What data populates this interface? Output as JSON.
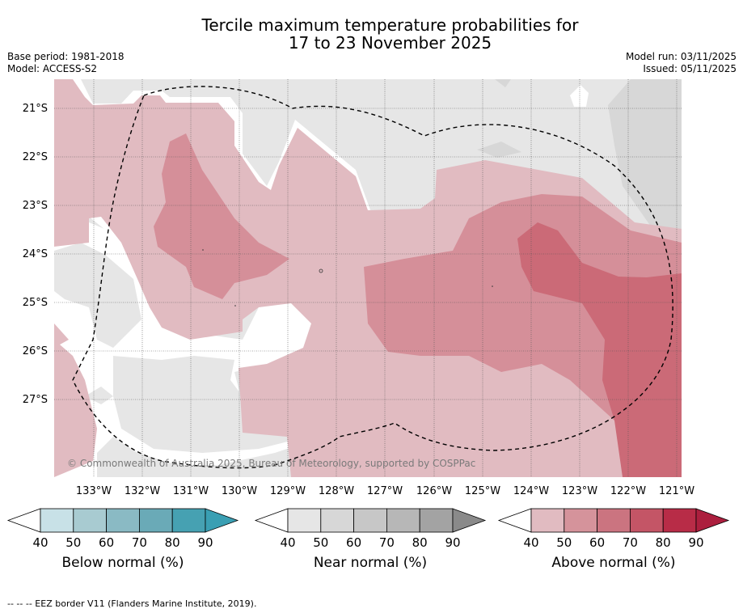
{
  "title": {
    "line1": "Tercile maximum temperature probabilities for",
    "line2": "17 to 23 November 2025"
  },
  "meta": {
    "base_period": "Base period: 1981-2018",
    "model": "Model: ACCESS-S2",
    "model_run": "Model run: 03/11/2025",
    "issued": "Issued: 05/11/2025"
  },
  "map": {
    "lat_labels": [
      "21°S",
      "22°S",
      "23°S",
      "24°S",
      "25°S",
      "26°S",
      "27°S"
    ],
    "lon_labels": [
      "133°W",
      "132°W",
      "131°W",
      "130°W",
      "129°W",
      "128°W",
      "127°W",
      "126°W",
      "125°W",
      "124°W",
      "123°W",
      "122°W",
      "121°W"
    ],
    "copyright": "© Commonwealth of Australia 2025, Bureau of Meteorology, supported by COSPPac",
    "colors": {
      "near": "#e6e6e6",
      "near50": "#d7d7d7",
      "above40": "#e1bbc1",
      "above50": "#d58f99",
      "above60": "#cb6a77",
      "land_white": "#ffffff"
    }
  },
  "colorbars": [
    {
      "title": "Below normal (%)",
      "ticks": [
        "40",
        "50",
        "60",
        "70",
        "80",
        "90"
      ],
      "colors": [
        "#ffffff",
        "#c8e1e7",
        "#a8cbd1",
        "#8abac4",
        "#6aaab7",
        "#46a1b2",
        "#3a9fb3"
      ]
    },
    {
      "title": "Near normal (%)",
      "ticks": [
        "40",
        "50",
        "60",
        "70",
        "80",
        "90"
      ],
      "colors": [
        "#ffffff",
        "#e6e6e6",
        "#d7d7d7",
        "#c7c7c7",
        "#b7b7b7",
        "#a3a3a3",
        "#8a8a8a"
      ]
    },
    {
      "title": "Above normal (%)",
      "ticks": [
        "40",
        "50",
        "60",
        "70",
        "80",
        "90"
      ],
      "colors": [
        "#ffffff",
        "#e1bbc1",
        "#d5939b",
        "#cb7480",
        "#c45566",
        "#b82c47",
        "#ac1f3e"
      ]
    }
  ],
  "footer": "--  --  -- EEZ border V11 (Flanders Marine Institute, 2019)."
}
